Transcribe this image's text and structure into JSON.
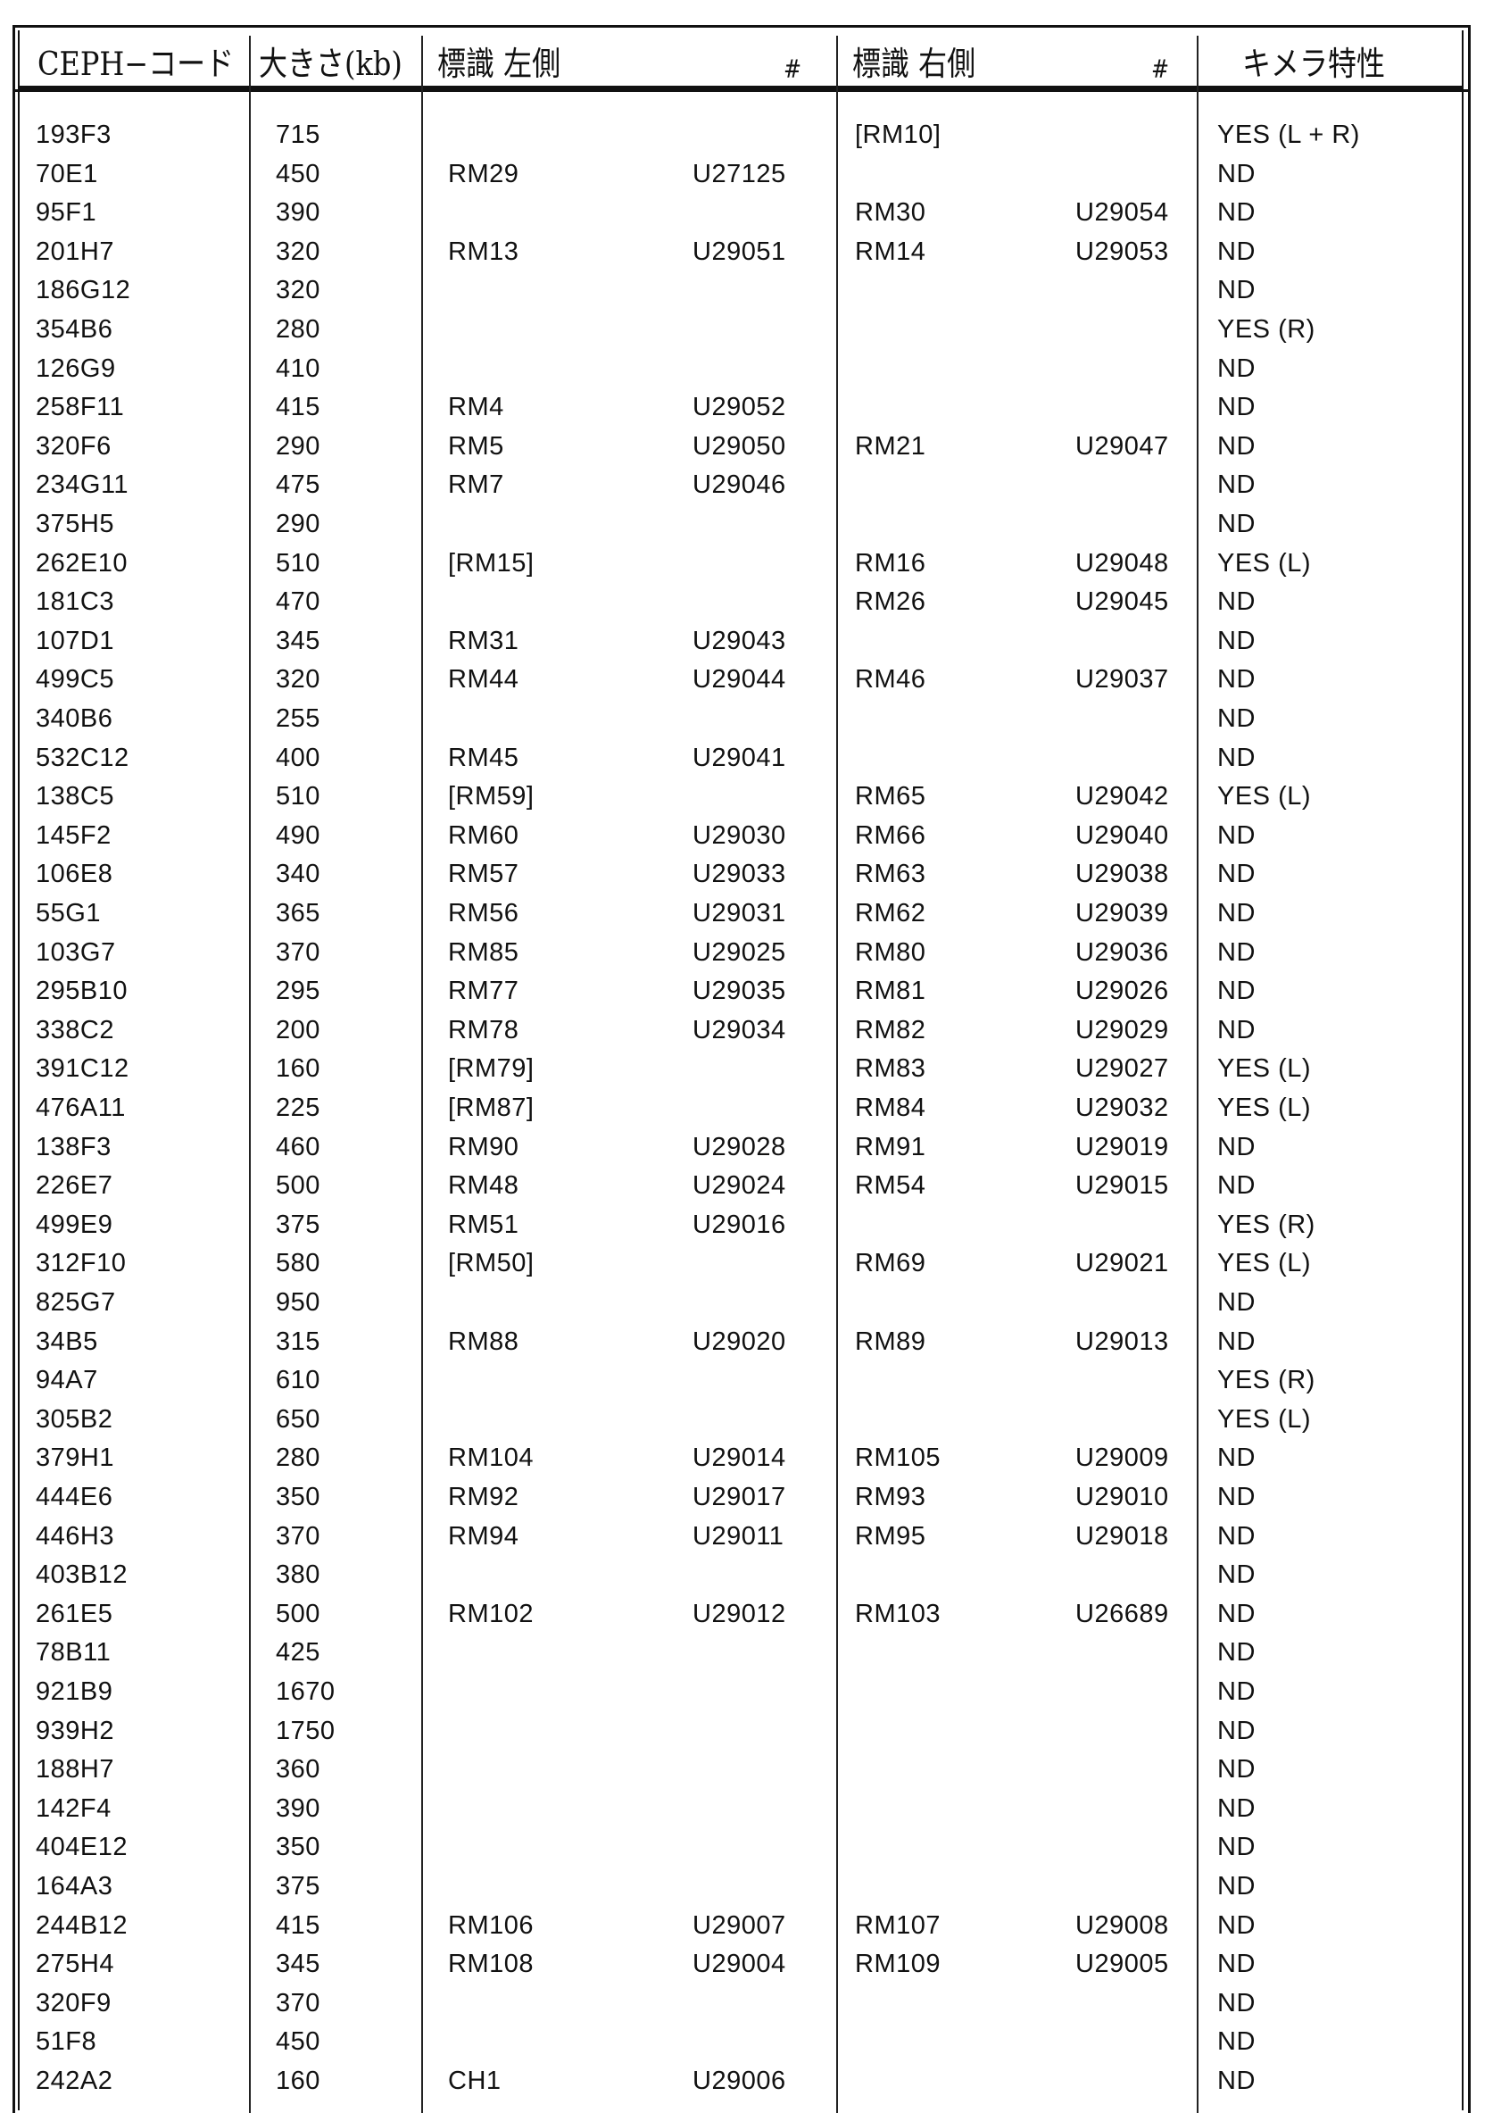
{
  "table": {
    "headers": {
      "code": "CEPH−コード",
      "size": "大きさ(kb)",
      "left_marker": "標識 左側",
      "left_hash": "#",
      "right_marker": "標識 右側",
      "right_hash": "#",
      "chimera": "キメラ特性"
    },
    "rows": [
      [
        "193F3",
        "715",
        "",
        "",
        "[RM10]",
        "",
        "YES (L + R)"
      ],
      [
        "70E1",
        "450",
        "RM29",
        "U27125",
        "",
        "",
        "ND"
      ],
      [
        "95F1",
        "390",
        "",
        "",
        "RM30",
        "U29054",
        "ND"
      ],
      [
        "201H7",
        "320",
        "RM13",
        "U29051",
        "RM14",
        "U29053",
        "ND"
      ],
      [
        "186G12",
        "320",
        "",
        "",
        "",
        "",
        "ND"
      ],
      [
        "354B6",
        "280",
        "",
        "",
        "",
        "",
        "YES (R)"
      ],
      [
        "126G9",
        "410",
        "",
        "",
        "",
        "",
        "ND"
      ],
      [
        "258F11",
        "415",
        "RM4",
        "U29052",
        "",
        "",
        "ND"
      ],
      [
        "320F6",
        "290",
        "RM5",
        "U29050",
        "RM21",
        "U29047",
        "ND"
      ],
      [
        "234G11",
        "475",
        "RM7",
        "U29046",
        "",
        "",
        "ND"
      ],
      [
        "375H5",
        "290",
        "",
        "",
        "",
        "",
        "ND"
      ],
      [
        "262E10",
        "510",
        "[RM15]",
        "",
        "RM16",
        "U29048",
        "YES (L)"
      ],
      [
        "181C3",
        "470",
        "",
        "",
        "RM26",
        "U29045",
        "ND"
      ],
      [
        "107D1",
        "345",
        "RM31",
        "U29043",
        "",
        "",
        "ND"
      ],
      [
        "499C5",
        "320",
        "RM44",
        "U29044",
        "RM46",
        "U29037",
        "ND"
      ],
      [
        "340B6",
        "255",
        "",
        "",
        "",
        "",
        "ND"
      ],
      [
        "532C12",
        "400",
        "RM45",
        "U29041",
        "",
        "",
        "ND"
      ],
      [
        "138C5",
        "510",
        "[RM59]",
        "",
        "RM65",
        "U29042",
        "YES (L)"
      ],
      [
        "145F2",
        "490",
        "RM60",
        "U29030",
        "RM66",
        "U29040",
        "ND"
      ],
      [
        "106E8",
        "340",
        "RM57",
        "U29033",
        "RM63",
        "U29038",
        "ND"
      ],
      [
        "55G1",
        "365",
        "RM56",
        "U29031",
        "RM62",
        "U29039",
        "ND"
      ],
      [
        "103G7",
        "370",
        "RM85",
        "U29025",
        "RM80",
        "U29036",
        "ND"
      ],
      [
        "295B10",
        "295",
        "RM77",
        "U29035",
        "RM81",
        "U29026",
        "ND"
      ],
      [
        "338C2",
        "200",
        "RM78",
        "U29034",
        "RM82",
        "U29029",
        "ND"
      ],
      [
        "391C12",
        "160",
        "[RM79]",
        "",
        "RM83",
        "U29027",
        "YES (L)"
      ],
      [
        "476A11",
        "225",
        "[RM87]",
        "",
        "RM84",
        "U29032",
        "YES (L)"
      ],
      [
        "138F3",
        "460",
        "RM90",
        "U29028",
        "RM91",
        "U29019",
        "ND"
      ],
      [
        "226E7",
        "500",
        "RM48",
        "U29024",
        "RM54",
        "U29015",
        "ND"
      ],
      [
        "499E9",
        "375",
        "RM51",
        "U29016",
        "",
        "",
        "YES (R)"
      ],
      [
        "312F10",
        "580",
        "[RM50]",
        "",
        "RM69",
        "U29021",
        "YES (L)"
      ],
      [
        "825G7",
        "950",
        "",
        "",
        "",
        "",
        "ND"
      ],
      [
        "34B5",
        "315",
        "RM88",
        "U29020",
        "RM89",
        "U29013",
        "ND"
      ],
      [
        "94A7",
        "610",
        "",
        "",
        "",
        "",
        "YES (R)"
      ],
      [
        "305B2",
        "650",
        "",
        "",
        "",
        "",
        "YES (L)"
      ],
      [
        "379H1",
        "280",
        "RM104",
        "U29014",
        "RM105",
        "U29009",
        "ND"
      ],
      [
        "444E6",
        "350",
        "RM92",
        "U29017",
        "RM93",
        "U29010",
        "ND"
      ],
      [
        "446H3",
        "370",
        "RM94",
        "U29011",
        "RM95",
        "U29018",
        "ND"
      ],
      [
        "403B12",
        "380",
        "",
        "",
        "",
        "",
        "ND"
      ],
      [
        "261E5",
        "500",
        "RM102",
        "U29012",
        "RM103",
        "U26689",
        "ND"
      ],
      [
        "78B11",
        "425",
        "",
        "",
        "",
        "",
        "ND"
      ],
      [
        "921B9",
        "1670",
        "",
        "",
        "",
        "",
        "ND"
      ],
      [
        "939H2",
        "1750",
        "",
        "",
        "",
        "",
        "ND"
      ],
      [
        "188H7",
        "360",
        "",
        "",
        "",
        "",
        "ND"
      ],
      [
        "142F4",
        "390",
        "",
        "",
        "",
        "",
        "ND"
      ],
      [
        "404E12",
        "350",
        "",
        "",
        "",
        "",
        "ND"
      ],
      [
        "164A3",
        "375",
        "",
        "",
        "",
        "",
        "ND"
      ],
      [
        "244B12",
        "415",
        "RM106",
        "U29007",
        "RM107",
        "U29008",
        "ND"
      ],
      [
        "275H4",
        "345",
        "RM108",
        "U29004",
        "RM109",
        "U29005",
        "ND"
      ],
      [
        "320F9",
        "370",
        "",
        "",
        "",
        "",
        "ND"
      ],
      [
        "51F8",
        "450",
        "",
        "",
        "",
        "",
        "ND"
      ],
      [
        "242A2",
        "160",
        "CH1",
        "U29006",
        "",
        "",
        "ND"
      ]
    ]
  }
}
